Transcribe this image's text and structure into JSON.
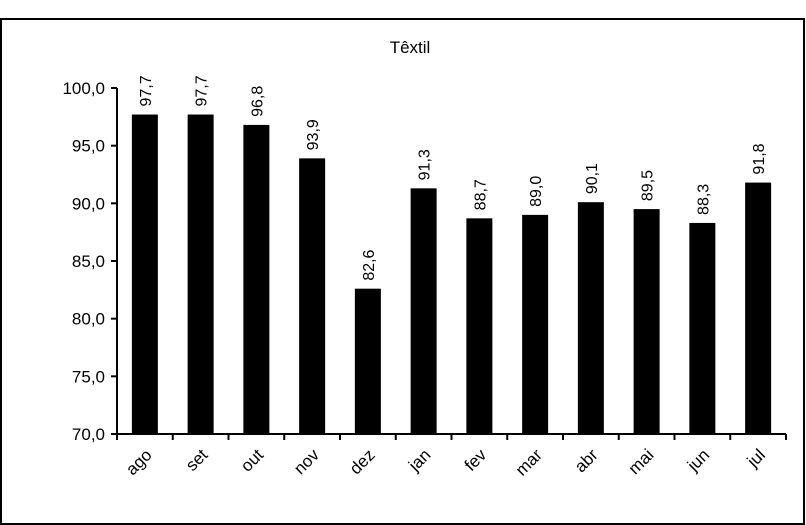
{
  "chart_data": {
    "type": "bar",
    "title": "Têxtil",
    "categories": [
      "ago",
      "set",
      "out",
      "nov",
      "dez",
      "jan",
      "fev",
      "mar",
      "abr",
      "mai",
      "jun",
      "jul"
    ],
    "values": [
      97.7,
      97.7,
      96.8,
      93.9,
      82.6,
      91.3,
      88.7,
      89.0,
      90.1,
      89.5,
      88.3,
      91.8
    ],
    "value_labels": [
      "97,7",
      "97,7",
      "96,8",
      "93,9",
      "82,6",
      "91,3",
      "88,7",
      "89,0",
      "90,1",
      "89,5",
      "88,3",
      "91,8"
    ],
    "ylim": [
      70,
      100
    ],
    "yticks": [
      70,
      75,
      80,
      85,
      90,
      95,
      100
    ],
    "ytick_labels": [
      "70,0",
      "75,0",
      "80,0",
      "85,0",
      "90,0",
      "95,0",
      "100,0"
    ],
    "xlabel": "",
    "ylabel": "",
    "grid": false,
    "legend": "none",
    "bar_color": "#000000"
  }
}
